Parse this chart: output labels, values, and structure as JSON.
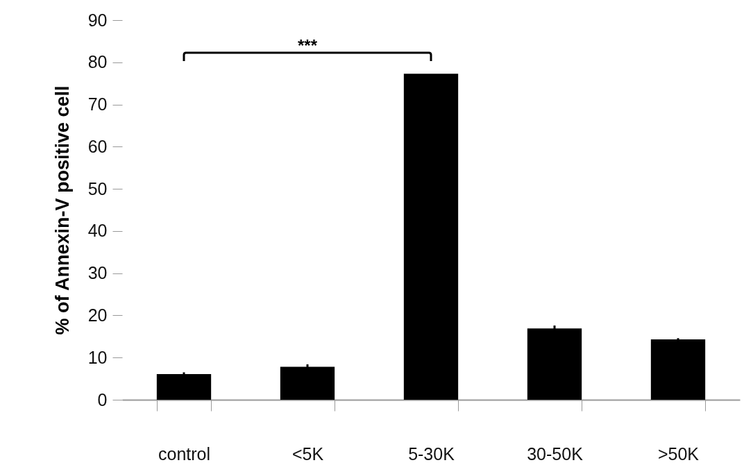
{
  "chart_data": {
    "type": "bar",
    "ylabel": "% of Annexin-V positive cell",
    "categories": [
      "control",
      "<5K",
      "5-30K",
      "30-50K",
      ">50K"
    ],
    "values": [
      6.1,
      7.8,
      77.3,
      16.9,
      14.3
    ],
    "errors": [
      0.4,
      0.6,
      null,
      0.7,
      0.3
    ],
    "color": "#000000",
    "ylim": [
      0,
      90
    ],
    "yticks": [
      0,
      10,
      20,
      30,
      40,
      50,
      60,
      70,
      80,
      90
    ],
    "grid": false,
    "annotations": [
      "***"
    ]
  }
}
